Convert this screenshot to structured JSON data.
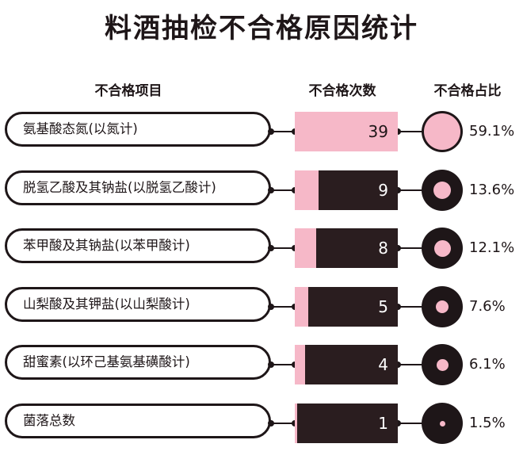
{
  "title": "料酒抽检不合格原因统计",
  "headers": {
    "item": "不合格项目",
    "count": "不合格次数",
    "ratio": "不合格占比"
  },
  "colors": {
    "pink": "#f6b8c8",
    "dark": "#1e1618"
  },
  "chart_data": {
    "type": "bar",
    "categories": [
      "氨基酸态氮(以氮计)",
      "脱氢乙酸及其钠盐(以脱氢乙酸计)",
      "苯甲酸及其钠盐(以苯甲酸计)",
      "山梨酸及其钾盐(以山梨酸计)",
      "甜蜜素(以环己基氨基磺酸计)",
      "菌落总数"
    ],
    "values": [
      39,
      9,
      8,
      5,
      4,
      1
    ],
    "percentages": [
      "59.1%",
      "13.6%",
      "12.1%",
      "7.6%",
      "6.1%",
      "1.5%"
    ],
    "max_value": 39
  }
}
